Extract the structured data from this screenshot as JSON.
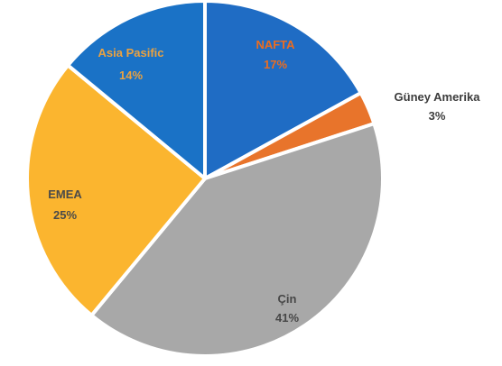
{
  "chart_data": {
    "type": "pie",
    "title": "",
    "start_angle_deg": 0,
    "direction": "clockwise",
    "slices": [
      {
        "label": "NAFTA",
        "value": 17,
        "value_label": "17%",
        "color": "#1f6cc4",
        "label_color": "#ec6d1f"
      },
      {
        "label": "Güney Amerika",
        "value": 3,
        "value_label": "3%",
        "color": "#e8742b",
        "label_color": "#3c3c3c"
      },
      {
        "label": "Çin",
        "value": 41,
        "value_label": "41%",
        "color": "#a8a8a8",
        "label_color": "#474747"
      },
      {
        "label": "EMEA",
        "value": 25,
        "value_label": "25%",
        "color": "#fbb52f",
        "label_color": "#4a4a4a"
      },
      {
        "label": "Asia Pasific",
        "value": 14,
        "value_label": "14%",
        "color": "#1a72c6",
        "label_color": "#eba240"
      }
    ]
  }
}
